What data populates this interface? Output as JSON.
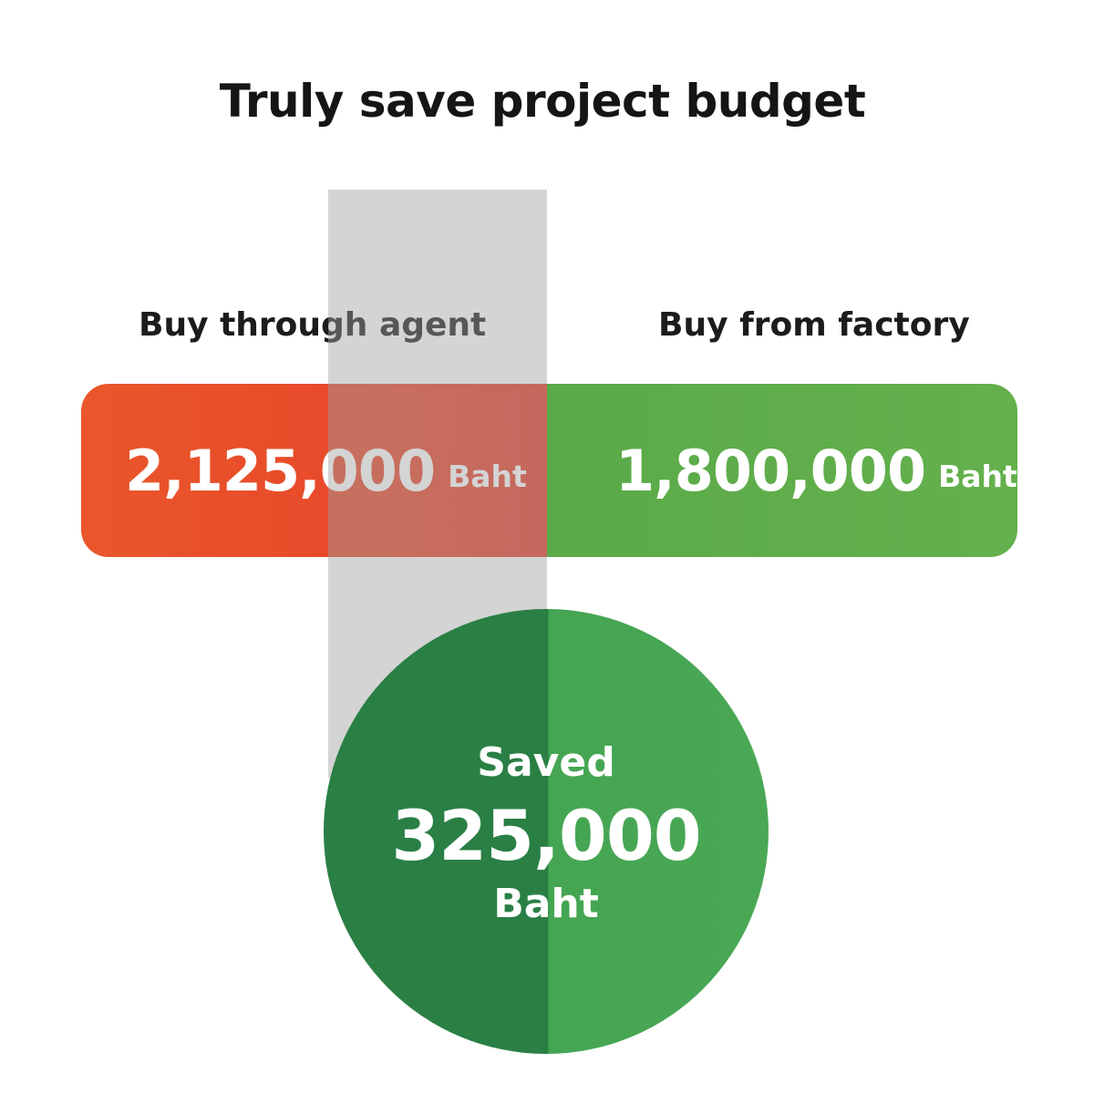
{
  "title": "Truly save project budget",
  "comparison": {
    "agent": {
      "label": "Buy through agent",
      "amount": "2,125,000",
      "unit": "Baht",
      "color": "#e8552a"
    },
    "factory": {
      "label": "Buy from factory",
      "amount": "1,800,000",
      "unit": "Baht",
      "color": "#62ae4c"
    }
  },
  "savings": {
    "label": "Saved",
    "amount": "325,000",
    "unit": "Baht",
    "color": "#3a9a4c"
  },
  "colors": {
    "highlight": "#b4b4b4",
    "title": "#151515"
  }
}
